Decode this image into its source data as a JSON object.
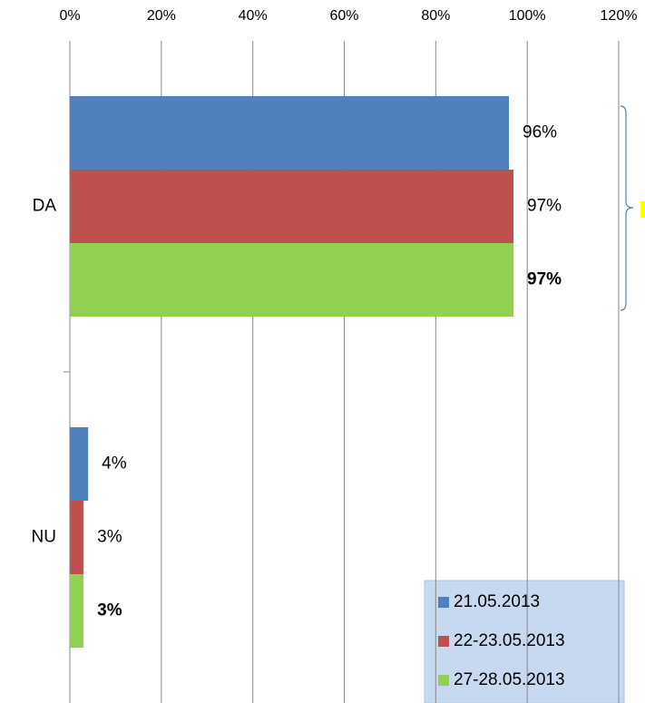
{
  "chart_data": {
    "type": "bar",
    "orientation": "horizontal",
    "categories": [
      "DA",
      "NU"
    ],
    "series": [
      {
        "name": "21.05.2013",
        "color": "#4f81bd",
        "values": [
          96,
          4
        ],
        "value_labels": [
          "96%",
          "4%"
        ]
      },
      {
        "name": "22-23.05.2013",
        "color": "#c0504d",
        "values": [
          97,
          3
        ],
        "value_labels": [
          "97%",
          "3%"
        ]
      },
      {
        "name": "27-28.05.2013",
        "color": "#92d050",
        "values": [
          97,
          3
        ],
        "value_labels": [
          "97%",
          "3%"
        ]
      }
    ],
    "xlim": [
      0,
      120
    ],
    "xticks": [
      {
        "value": 0,
        "label": "0%"
      },
      {
        "value": 20,
        "label": "20%"
      },
      {
        "value": 40,
        "label": "40%"
      },
      {
        "value": 60,
        "label": "60%"
      },
      {
        "value": 80,
        "label": "80%"
      },
      {
        "value": 100,
        "label": "100%"
      },
      {
        "value": 120,
        "label": "120%"
      }
    ],
    "grid": true,
    "legend": "lower right"
  }
}
